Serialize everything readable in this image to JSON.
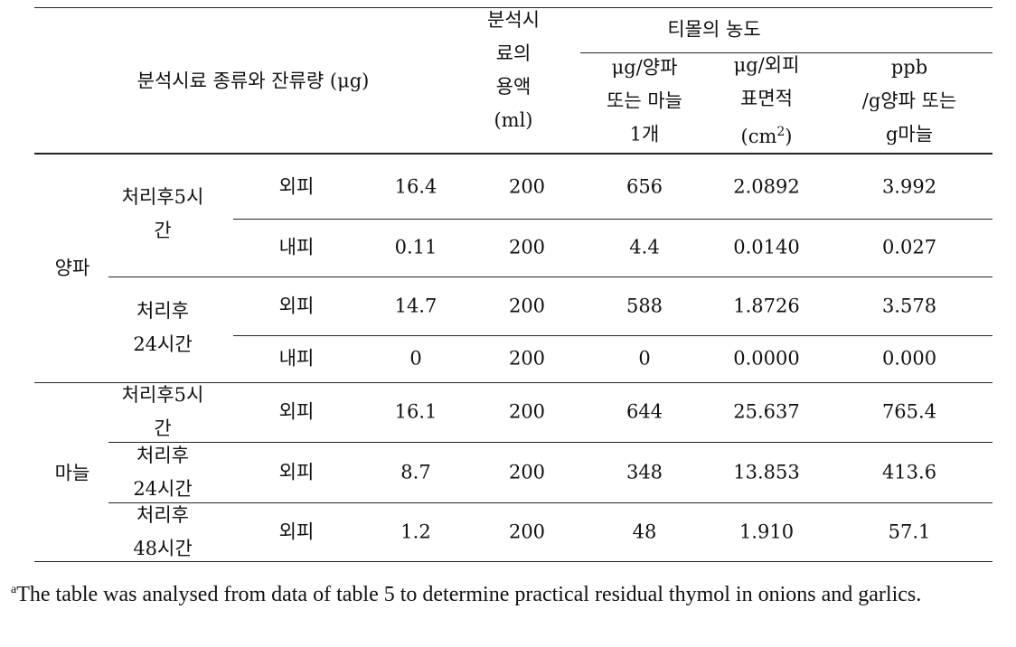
{
  "header": {
    "sample_type": "분석시료 종류와 잔류량 (μg)",
    "solution": [
      "분석시",
      "료의",
      "용액",
      "(ml)"
    ],
    "concentration": "티몰의 농도",
    "per_bulb": [
      "μg/양파",
      "또는 마늘",
      "1개"
    ],
    "per_area": {
      "lines": [
        "μg/외피",
        "표면적"
      ],
      "unit": "(cm",
      "sup": "2",
      "close": ")"
    },
    "ppb": [
      "ppb",
      "/g양파 또는",
      "g마늘"
    ]
  },
  "groups": [
    {
      "name": "양파",
      "subgroups": [
        {
          "time": [
            "처리후5시",
            "간"
          ],
          "rows": [
            {
              "part": "외피",
              "values": [
                "16.4",
                "200",
                "656",
                "2.0892",
                "3.992"
              ]
            },
            {
              "part": "내피",
              "values": [
                "0.11",
                "200",
                "4.4",
                "0.0140",
                "0.027"
              ]
            }
          ]
        },
        {
          "time": [
            "처리후",
            "24시간"
          ],
          "rows": [
            {
              "part": "외피",
              "values": [
                "14.7",
                "200",
                "588",
                "1.8726",
                "3.578"
              ]
            },
            {
              "part": "내피",
              "values": [
                "0",
                "200",
                "0",
                "0.0000",
                "0.000"
              ]
            }
          ]
        }
      ]
    },
    {
      "name": "마늘",
      "subgroups": [
        {
          "time": [
            "처리후5시",
            "간"
          ],
          "rows": [
            {
              "part": "외피",
              "values": [
                "16.1",
                "200",
                "644",
                "25.637",
                "765.4"
              ]
            }
          ]
        },
        {
          "time": [
            "처리후",
            "24시간"
          ],
          "rows": [
            {
              "part": "외피",
              "values": [
                "8.7",
                "200",
                "348",
                "13.853",
                "413.6"
              ]
            }
          ]
        },
        {
          "time": [
            "처리후",
            "48시간"
          ],
          "rows": [
            {
              "part": "외피",
              "values": [
                "1.2",
                "200",
                "48",
                "1.910",
                "57.1"
              ]
            }
          ]
        }
      ]
    }
  ],
  "footnote": {
    "marker": "a",
    "text": "The table was analysed from data of table 5 to determine practical residual thymol in onions and garlics."
  }
}
